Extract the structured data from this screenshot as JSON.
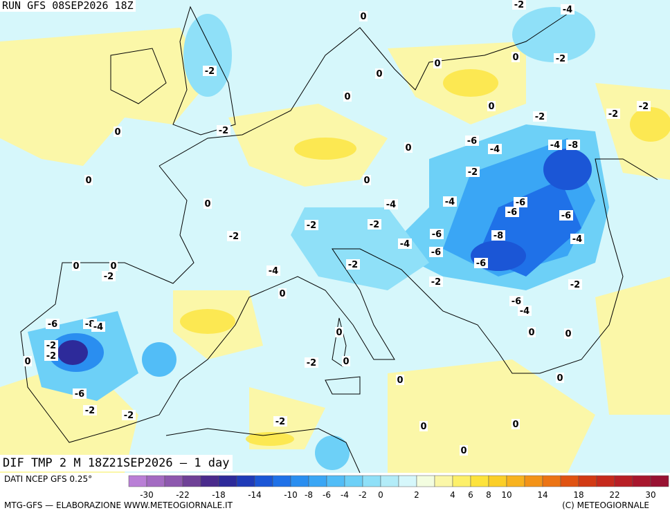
{
  "header": {
    "run_title": "RUN GFS 08SEP2026 18Z",
    "caption": "DIF TMP 2 M 18Z21SEP2026 — 1 day"
  },
  "legend": {
    "source": "DATI NCEP GFS 0.25°",
    "tick_labels": [
      "-30",
      "-22",
      "-18",
      "-14",
      "-10",
      "-8",
      "-6",
      "-4",
      "-2",
      "0",
      "2",
      "4",
      "6",
      "8",
      "10",
      "14",
      "18",
      "22",
      "30"
    ],
    "colors": [
      "#b97fd6",
      "#a36bc2",
      "#8d58ae",
      "#6f4197",
      "#4a2b8c",
      "#2d2a9a",
      "#1f3bb8",
      "#1b56d6",
      "#1f71e8",
      "#2a8ef0",
      "#3aa6f5",
      "#52bdf7",
      "#6dd0f7",
      "#8fe0f8",
      "#b3ecf8",
      "#d6f7fb",
      "#f3fde0",
      "#fbf7a8",
      "#fdf06a",
      "#fde33c",
      "#fbcf28",
      "#f8b31f",
      "#f39318",
      "#ec7414",
      "#e05312",
      "#d23a14",
      "#c62a1c",
      "#b81f25",
      "#a8172d",
      "#981232"
    ]
  },
  "credits": {
    "left": "MTG-GFS — ELABORAZIONE WWW.METEOGIORNALE.IT",
    "right": "(C) METEOGIORNALE"
  },
  "contour_labels": [
    "-2",
    "-4",
    "-2",
    "-2",
    "-2",
    "0",
    "0",
    "0",
    "0",
    "0",
    "-2",
    "0",
    "-2",
    "-4",
    "-8",
    "-6",
    "-4",
    "-2",
    "-2",
    "-4",
    "-6",
    "-6",
    "-6",
    "-4",
    "-2",
    "-2",
    "-4",
    "-8",
    "-6",
    "-6",
    "-6",
    "-4",
    "-2",
    "-2",
    "0",
    "0",
    "0",
    "0",
    "0",
    "-2",
    "-6",
    "-2",
    "-4",
    "-4",
    "-2",
    "-8",
    "-6",
    "-2",
    "0",
    "0",
    "0",
    "-2",
    "-4",
    "-6",
    "-2",
    "-2",
    "0",
    "-2",
    "-2",
    "0",
    "0",
    "0",
    "0",
    "0",
    "0",
    "0",
    "0",
    "0"
  ]
}
